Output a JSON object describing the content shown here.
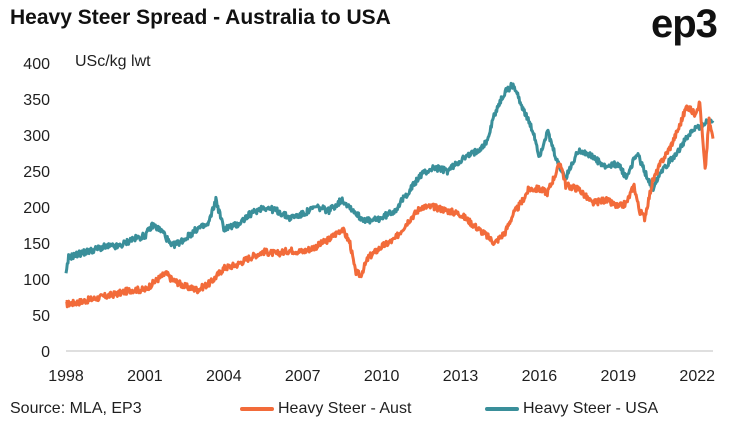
{
  "title": "Heavy Steer Spread - Australia to USA",
  "logo": "ep3",
  "source": "Source: MLA, EP3",
  "colors": {
    "aust": "#f26b3a",
    "usa": "#3a8f9a",
    "grid": "#d9d9d9"
  },
  "chart_data": {
    "type": "line",
    "title": "Heavy Steer Spread - Australia to USA",
    "ylabel": "USc/kg lwt",
    "xlabel": "",
    "ylim": [
      0,
      400
    ],
    "xlim": [
      1998,
      2022.6
    ],
    "yticks": [
      0,
      50,
      100,
      150,
      200,
      250,
      300,
      350,
      400
    ],
    "xticks": [
      1998,
      2001,
      2004,
      2007,
      2010,
      2013,
      2016,
      2019,
      2022
    ],
    "grid": false,
    "legend": "bottom",
    "series": [
      {
        "name": "Heavy Steer - Aust",
        "color": "#f26b3a",
        "points": [
          [
            1998.0,
            65
          ],
          [
            1998.5,
            68
          ],
          [
            1999.0,
            72
          ],
          [
            1999.5,
            76
          ],
          [
            2000.0,
            80
          ],
          [
            2000.5,
            85
          ],
          [
            2001.0,
            85
          ],
          [
            2001.5,
            100
          ],
          [
            2001.8,
            108
          ],
          [
            2002.0,
            100
          ],
          [
            2002.5,
            90
          ],
          [
            2003.0,
            85
          ],
          [
            2003.5,
            95
          ],
          [
            2004.0,
            115
          ],
          [
            2004.5,
            120
          ],
          [
            2005.0,
            130
          ],
          [
            2005.5,
            138
          ],
          [
            2006.0,
            135
          ],
          [
            2006.5,
            140
          ],
          [
            2007.0,
            138
          ],
          [
            2007.5,
            145
          ],
          [
            2008.0,
            155
          ],
          [
            2008.5,
            170
          ],
          [
            2008.8,
            150
          ],
          [
            2009.0,
            110
          ],
          [
            2009.2,
            105
          ],
          [
            2009.5,
            130
          ],
          [
            2010.0,
            145
          ],
          [
            2010.5,
            155
          ],
          [
            2011.0,
            180
          ],
          [
            2011.5,
            200
          ],
          [
            2012.0,
            200
          ],
          [
            2012.5,
            195
          ],
          [
            2013.0,
            190
          ],
          [
            2013.5,
            175
          ],
          [
            2014.0,
            160
          ],
          [
            2014.3,
            150
          ],
          [
            2014.7,
            165
          ],
          [
            2015.0,
            190
          ],
          [
            2015.3,
            205
          ],
          [
            2015.6,
            225
          ],
          [
            2016.0,
            225
          ],
          [
            2016.3,
            220
          ],
          [
            2016.6,
            245
          ],
          [
            2016.8,
            262
          ],
          [
            2017.0,
            230
          ],
          [
            2017.5,
            225
          ],
          [
            2018.0,
            205
          ],
          [
            2018.5,
            210
          ],
          [
            2019.0,
            200
          ],
          [
            2019.3,
            205
          ],
          [
            2019.6,
            230
          ],
          [
            2019.8,
            195
          ],
          [
            2020.0,
            185
          ],
          [
            2020.3,
            235
          ],
          [
            2020.6,
            260
          ],
          [
            2021.0,
            285
          ],
          [
            2021.3,
            310
          ],
          [
            2021.6,
            340
          ],
          [
            2021.9,
            330
          ],
          [
            2022.1,
            345
          ],
          [
            2022.3,
            250
          ],
          [
            2022.45,
            320
          ],
          [
            2022.6,
            295
          ]
        ]
      },
      {
        "name": "Heavy Steer - USA",
        "color": "#3a8f9a",
        "points": [
          [
            1998.0,
            105
          ],
          [
            1998.1,
            130
          ],
          [
            1998.5,
            135
          ],
          [
            1999.0,
            140
          ],
          [
            1999.5,
            145
          ],
          [
            2000.0,
            145
          ],
          [
            2000.5,
            155
          ],
          [
            2001.0,
            160
          ],
          [
            2001.3,
            175
          ],
          [
            2001.7,
            165
          ],
          [
            2002.0,
            145
          ],
          [
            2002.5,
            155
          ],
          [
            2003.0,
            170
          ],
          [
            2003.4,
            175
          ],
          [
            2003.7,
            210
          ],
          [
            2004.0,
            170
          ],
          [
            2004.5,
            175
          ],
          [
            2005.0,
            190
          ],
          [
            2005.5,
            200
          ],
          [
            2006.0,
            195
          ],
          [
            2006.5,
            185
          ],
          [
            2007.0,
            190
          ],
          [
            2007.5,
            200
          ],
          [
            2008.0,
            195
          ],
          [
            2008.5,
            210
          ],
          [
            2008.8,
            200
          ],
          [
            2009.2,
            185
          ],
          [
            2009.6,
            180
          ],
          [
            2010.0,
            185
          ],
          [
            2010.5,
            195
          ],
          [
            2011.0,
            220
          ],
          [
            2011.5,
            245
          ],
          [
            2012.0,
            255
          ],
          [
            2012.5,
            250
          ],
          [
            2013.0,
            265
          ],
          [
            2013.5,
            275
          ],
          [
            2014.0,
            290
          ],
          [
            2014.3,
            330
          ],
          [
            2014.7,
            360
          ],
          [
            2015.0,
            370
          ],
          [
            2015.4,
            335
          ],
          [
            2015.8,
            300
          ],
          [
            2016.0,
            270
          ],
          [
            2016.3,
            305
          ],
          [
            2016.7,
            260
          ],
          [
            2017.0,
            240
          ],
          [
            2017.5,
            280
          ],
          [
            2018.0,
            270
          ],
          [
            2018.5,
            255
          ],
          [
            2019.0,
            260
          ],
          [
            2019.3,
            240
          ],
          [
            2019.7,
            275
          ],
          [
            2020.0,
            250
          ],
          [
            2020.3,
            225
          ],
          [
            2020.6,
            250
          ],
          [
            2021.0,
            265
          ],
          [
            2021.4,
            285
          ],
          [
            2021.8,
            305
          ],
          [
            2022.2,
            315
          ],
          [
            2022.6,
            320
          ]
        ]
      }
    ]
  }
}
